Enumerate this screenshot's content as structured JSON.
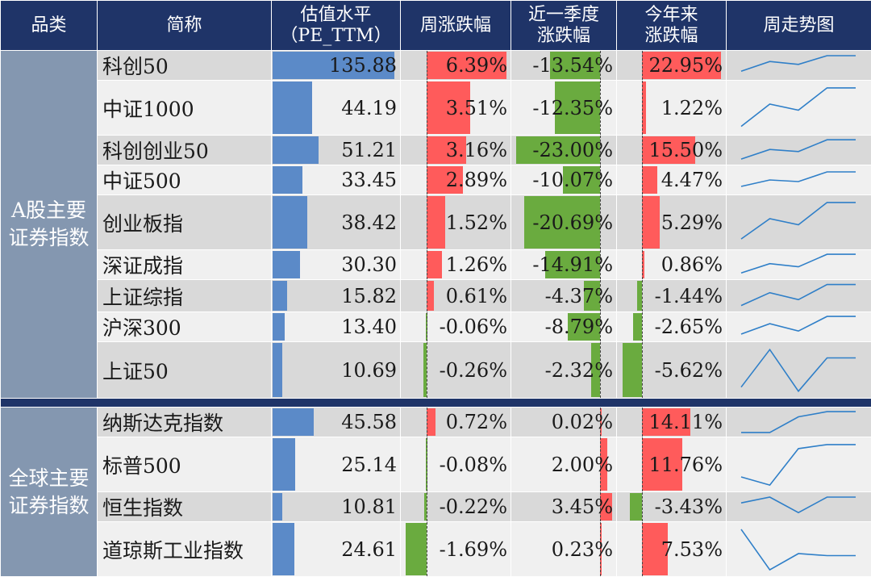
{
  "headers": {
    "category": "品类",
    "name": "简称",
    "pe_line1": "估值水平",
    "pe_line2": "（PE_TTM）",
    "week": "周涨跌幅",
    "quarter_line1": "近一季度",
    "quarter_line2": "涨跌幅",
    "ytd_line1": "今年来",
    "ytd_line2": "涨跌幅",
    "trend": "周走势图"
  },
  "groups": [
    {
      "label_line1": "A股主要",
      "label_line2": "证券指数",
      "rows": [
        {
          "name": "科创50",
          "pe": 135.88,
          "pe_text": "135.88",
          "week": 6.39,
          "week_text": "6.39%",
          "quarter": -13.54,
          "quarter_text": "-13.54%",
          "ytd": 22.95,
          "ytd_text": "22.95%",
          "trend": [
            0.2,
            0.7,
            0.55,
            1.0,
            1.0
          ]
        },
        {
          "name": "中证1000",
          "pe": 44.19,
          "pe_text": "44.19",
          "week": 3.51,
          "week_text": "3.51%",
          "quarter": -12.35,
          "quarter_text": "-12.35%",
          "ytd": 1.22,
          "ytd_text": "1.22%",
          "trend": [
            0.05,
            0.6,
            0.45,
            1.0,
            1.0
          ]
        },
        {
          "name": "科创创业50",
          "pe": 51.21,
          "pe_text": "51.21",
          "week": 3.16,
          "week_text": "3.16%",
          "quarter": -23.0,
          "quarter_text": "-23.00%",
          "ytd": 15.5,
          "ytd_text": "15.50%",
          "trend": [
            0.1,
            0.55,
            0.45,
            1.0,
            1.0
          ]
        },
        {
          "name": "中证500",
          "pe": 33.45,
          "pe_text": "33.45",
          "week": 2.89,
          "week_text": "2.89%",
          "quarter": -10.07,
          "quarter_text": "-10.07%",
          "ytd": 4.47,
          "ytd_text": "4.47%",
          "trend": [
            0.1,
            0.5,
            0.4,
            1.0,
            1.0
          ]
        },
        {
          "name": "创业板指",
          "pe": 38.42,
          "pe_text": "38.42",
          "week": 1.52,
          "week_text": "1.52%",
          "quarter": -20.69,
          "quarter_text": "-20.69%",
          "ytd": 5.29,
          "ytd_text": "5.29%",
          "trend": [
            0.1,
            0.6,
            0.45,
            1.0,
            1.0
          ]
        },
        {
          "name": "深证成指",
          "pe": 30.3,
          "pe_text": "30.30",
          "week": 1.26,
          "week_text": "1.26%",
          "quarter": -14.91,
          "quarter_text": "-14.91%",
          "ytd": 0.86,
          "ytd_text": "0.86%",
          "trend": [
            0.1,
            0.55,
            0.4,
            1.0,
            1.0
          ]
        },
        {
          "name": "上证综指",
          "pe": 15.82,
          "pe_text": "15.82",
          "week": 0.61,
          "week_text": "0.61%",
          "quarter": -4.37,
          "quarter_text": "-4.37%",
          "ytd": -1.44,
          "ytd_text": "-1.44%",
          "trend": [
            0.1,
            0.65,
            0.35,
            1.0,
            1.0
          ]
        },
        {
          "name": "沪深300",
          "pe": 13.4,
          "pe_text": "13.40",
          "week": -0.06,
          "week_text": "-0.06%",
          "quarter": -8.79,
          "quarter_text": "-8.79%",
          "ytd": -2.65,
          "ytd_text": "-2.65%",
          "trend": [
            0.15,
            0.65,
            0.3,
            1.0,
            1.0
          ]
        },
        {
          "name": "上证50",
          "pe": 10.69,
          "pe_text": "10.69",
          "week": -0.26,
          "week_text": "-0.26%",
          "quarter": -2.32,
          "quarter_text": "-2.32%",
          "ytd": -5.62,
          "ytd_text": "-5.62%",
          "trend": [
            0.1,
            1.0,
            0.0,
            0.8,
            0.8
          ]
        }
      ]
    },
    {
      "label_line1": "全球主要",
      "label_line2": "证券指数",
      "rows": [
        {
          "name": "纳斯达克指数",
          "pe": 45.58,
          "pe_text": "45.58",
          "week": 0.72,
          "week_text": "0.72%",
          "quarter": 0.02,
          "quarter_text": "0.02%",
          "ytd": 14.11,
          "ytd_text": "14.11%",
          "trend": [
            0.0,
            0.0,
            0.75,
            1.0,
            1.0
          ]
        },
        {
          "name": "标普500",
          "pe": 25.14,
          "pe_text": "25.14",
          "week": -0.08,
          "week_text": "-0.08%",
          "quarter": 2.0,
          "quarter_text": "2.00%",
          "ytd": 11.76,
          "ytd_text": "11.76%",
          "trend": [
            0.2,
            0.0,
            0.9,
            1.0,
            1.0
          ]
        },
        {
          "name": "恒生指数",
          "pe": 10.81,
          "pe_text": "10.81",
          "week": -0.22,
          "week_text": "-0.22%",
          "quarter": 3.45,
          "quarter_text": "3.45%",
          "ytd": -3.43,
          "ytd_text": "-3.43%",
          "trend": [
            0.7,
            1.0,
            0.2,
            1.0,
            1.0
          ]
        },
        {
          "name": "道琼斯工业指数",
          "pe": 24.61,
          "pe_text": "24.61",
          "week": -1.69,
          "week_text": "-1.69%",
          "quarter": 0.23,
          "quarter_text": "0.23%",
          "ytd": 7.53,
          "ytd_text": "7.53%",
          "trend": [
            1.0,
            0.0,
            0.4,
            0.35,
            0.35
          ]
        }
      ]
    }
  ],
  "colors": {
    "header_bg": "#1f3468",
    "category_bg": "#8497b0",
    "pe_bar": "#5b8ac8",
    "positive_bar": "#ff5b5b",
    "negative_bar": "#6aab3f",
    "trend_line": "#2f7fc8",
    "row_odd": "#d9d9d9",
    "row_even": "#f0f0f0"
  }
}
